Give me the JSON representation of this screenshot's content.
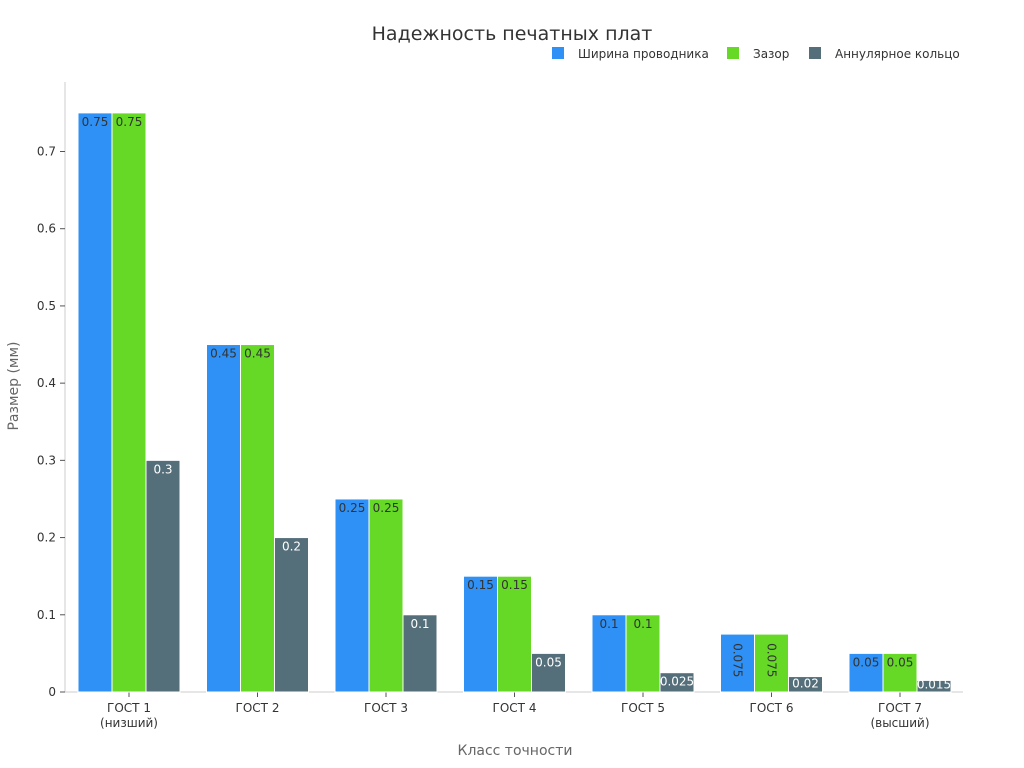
{
  "chart_data": {
    "type": "bar",
    "title": "Надежность печатных плат",
    "xlabel": "Класс точности",
    "ylabel": "Размер (мм)",
    "categories": [
      [
        "ГОСТ 1",
        "(низший)"
      ],
      [
        "ГОСТ 2"
      ],
      [
        "ГОСТ 3"
      ],
      [
        "ГОСТ 4"
      ],
      [
        "ГОСТ 5"
      ],
      [
        "ГОСТ 6"
      ],
      [
        "ГОСТ 7",
        "(высший)"
      ]
    ],
    "series": [
      {
        "name": "Ширина проводника",
        "color": "#2f91f6",
        "values": [
          0.75,
          0.45,
          0.25,
          0.15,
          0.1,
          0.075,
          0.05
        ],
        "labels": [
          "0.75",
          "0.45",
          "0.25",
          "0.15",
          "0.1",
          "0.075",
          "0.05"
        ]
      },
      {
        "name": "Зазор",
        "color": "#66d926",
        "values": [
          0.75,
          0.45,
          0.25,
          0.15,
          0.1,
          0.075,
          0.05
        ],
        "labels": [
          "0.75",
          "0.45",
          "0.25",
          "0.15",
          "0.1",
          "0.075",
          "0.05"
        ]
      },
      {
        "name": "Аннулярное кольцо",
        "color": "#546e7a",
        "values": [
          0.3,
          0.2,
          0.1,
          0.05,
          0.025,
          0.02,
          0.015
        ],
        "labels": [
          "0.3",
          "0.2",
          "0.1",
          "0.05",
          "0.025",
          "0.02",
          "0.015"
        ]
      }
    ],
    "yticks": [
      0,
      0.1,
      0.2,
      0.3,
      0.4,
      0.5,
      0.6,
      0.7
    ],
    "ytick_labels": [
      "0",
      "0.1",
      "0.2",
      "0.3",
      "0.4",
      "0.5",
      "0.6",
      "0.7"
    ],
    "ylim": [
      0,
      0.79
    ],
    "grid": false,
    "legend_position": "top-right"
  }
}
